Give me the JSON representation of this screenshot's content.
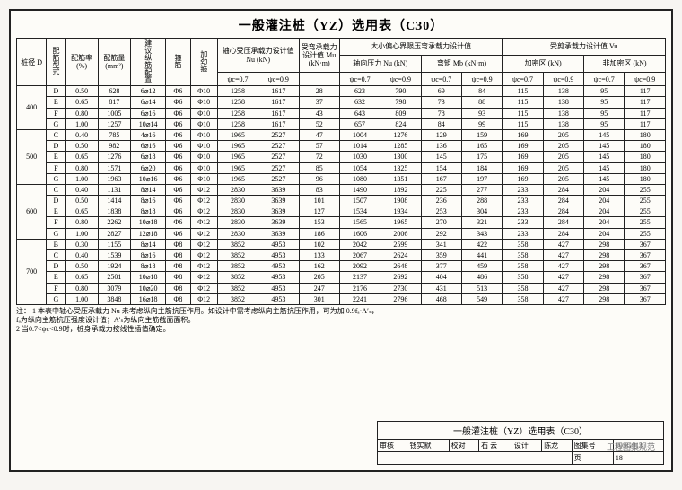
{
  "title": "一般灌注桩（YZ）选用表（C30）",
  "columns": {
    "diameter": "桩径 D",
    "reinf_type": "配筋型式",
    "reinf_ratio": "配筋率 (%)",
    "reinf_area": "配筋量 (mm²)",
    "recommend": "建议纵筋配置",
    "stirrup": "箍筋",
    "add_stirrup": "加劲箍",
    "axial_group": "轴心受压承载力设计值 Nu (kN)",
    "bend_group": "受弯承载力设计值 Mu (kN·m)",
    "large_ecc_group": "大小偏心界限压弯承载力设计值",
    "large_ecc_N": "轴向压力 Nu (kN)",
    "large_ecc_M": "弯矩 Mb (kN·m)",
    "shear_group": "受剪承载力设计值 Vu",
    "shear_dense": "加密区 (kN)",
    "shear_sparse": "非加密区 (kN)",
    "psi07": "ψc=0.7",
    "psi09": "ψc=0.9"
  },
  "groups": [
    {
      "diameter": "400",
      "rows": [
        [
          "D",
          "0.50",
          "628",
          "6⌀12",
          "Φ6",
          "Φ10",
          "1258",
          "1617",
          "28",
          "623",
          "790",
          "69",
          "84",
          "115",
          "138",
          "95",
          "117"
        ],
        [
          "E",
          "0.65",
          "817",
          "6⌀14",
          "Φ6",
          "Φ10",
          "1258",
          "1617",
          "37",
          "632",
          "798",
          "73",
          "88",
          "115",
          "138",
          "95",
          "117"
        ],
        [
          "F",
          "0.80",
          "1005",
          "6⌀16",
          "Φ6",
          "Φ10",
          "1258",
          "1617",
          "43",
          "643",
          "809",
          "78",
          "93",
          "115",
          "138",
          "95",
          "117"
        ],
        [
          "G",
          "1.00",
          "1257",
          "10⌀14",
          "Φ6",
          "Φ10",
          "1258",
          "1617",
          "52",
          "657",
          "824",
          "84",
          "99",
          "115",
          "138",
          "95",
          "117"
        ]
      ]
    },
    {
      "diameter": "500",
      "rows": [
        [
          "C",
          "0.40",
          "785",
          "4⌀16",
          "Φ6",
          "Φ10",
          "1965",
          "2527",
          "47",
          "1004",
          "1276",
          "129",
          "159",
          "169",
          "205",
          "145",
          "180"
        ],
        [
          "D",
          "0.50",
          "982",
          "6⌀16",
          "Φ6",
          "Φ10",
          "1965",
          "2527",
          "57",
          "1014",
          "1285",
          "136",
          "165",
          "169",
          "205",
          "145",
          "180"
        ],
        [
          "E",
          "0.65",
          "1276",
          "6⌀18",
          "Φ6",
          "Φ10",
          "1965",
          "2527",
          "72",
          "1030",
          "1300",
          "145",
          "175",
          "169",
          "205",
          "145",
          "180"
        ],
        [
          "F",
          "0.80",
          "1571",
          "6⌀20",
          "Φ6",
          "Φ10",
          "1965",
          "2527",
          "85",
          "1054",
          "1325",
          "154",
          "184",
          "169",
          "205",
          "145",
          "180"
        ],
        [
          "G",
          "1.00",
          "1963",
          "10⌀16",
          "Φ6",
          "Φ10",
          "1965",
          "2527",
          "96",
          "1080",
          "1351",
          "167",
          "197",
          "169",
          "205",
          "145",
          "180"
        ]
      ]
    },
    {
      "diameter": "600",
      "rows": [
        [
          "C",
          "0.40",
          "1131",
          "8⌀14",
          "Φ6",
          "Φ12",
          "2830",
          "3639",
          "83",
          "1490",
          "1892",
          "225",
          "277",
          "233",
          "284",
          "204",
          "255"
        ],
        [
          "D",
          "0.50",
          "1414",
          "8⌀16",
          "Φ6",
          "Φ12",
          "2830",
          "3639",
          "101",
          "1507",
          "1908",
          "236",
          "288",
          "233",
          "284",
          "204",
          "255"
        ],
        [
          "E",
          "0.65",
          "1838",
          "8⌀18",
          "Φ6",
          "Φ12",
          "2830",
          "3639",
          "127",
          "1534",
          "1934",
          "253",
          "304",
          "233",
          "284",
          "204",
          "255"
        ],
        [
          "F",
          "0.80",
          "2262",
          "10⌀18",
          "Φ6",
          "Φ12",
          "2830",
          "3639",
          "153",
          "1565",
          "1965",
          "270",
          "321",
          "233",
          "284",
          "204",
          "255"
        ],
        [
          "G",
          "1.00",
          "2827",
          "12⌀18",
          "Φ6",
          "Φ12",
          "2830",
          "3639",
          "186",
          "1606",
          "2006",
          "292",
          "343",
          "233",
          "284",
          "204",
          "255"
        ]
      ]
    },
    {
      "diameter": "700",
      "rows": [
        [
          "B",
          "0.30",
          "1155",
          "8⌀14",
          "Φ8",
          "Φ12",
          "3852",
          "4953",
          "102",
          "2042",
          "2599",
          "341",
          "422",
          "358",
          "427",
          "298",
          "367"
        ],
        [
          "C",
          "0.40",
          "1539",
          "8⌀16",
          "Φ8",
          "Φ12",
          "3852",
          "4953",
          "133",
          "2067",
          "2624",
          "359",
          "441",
          "358",
          "427",
          "298",
          "367"
        ],
        [
          "D",
          "0.50",
          "1924",
          "8⌀18",
          "Φ8",
          "Φ12",
          "3852",
          "4953",
          "162",
          "2092",
          "2648",
          "377",
          "459",
          "358",
          "427",
          "298",
          "367"
        ],
        [
          "E",
          "0.65",
          "2501",
          "10⌀18",
          "Φ8",
          "Φ12",
          "3852",
          "4953",
          "205",
          "2137",
          "2692",
          "404",
          "486",
          "358",
          "427",
          "298",
          "367"
        ],
        [
          "F",
          "0.80",
          "3079",
          "10⌀20",
          "Φ8",
          "Φ12",
          "3852",
          "4953",
          "247",
          "2176",
          "2730",
          "431",
          "513",
          "358",
          "427",
          "298",
          "367"
        ],
        [
          "G",
          "1.00",
          "3848",
          "16⌀18",
          "Φ8",
          "Φ12",
          "3852",
          "4953",
          "301",
          "2241",
          "2796",
          "468",
          "549",
          "358",
          "427",
          "298",
          "367"
        ]
      ]
    }
  ],
  "notes": {
    "lead": "注：",
    "n1": "1 本表中轴心受压承载力 Nu 未考虑纵向主筋抗压作用。如设计中需考虑纵向主筋抗压作用，可为加 0.9fₐ·A′ₛ，fₐ为纵向主筋抗压强度设计值；A′ₛ为纵向主筋截面面积。",
    "n2": "2 当0.7<ψc<0.9时，桩身承载力按线性插值确定。"
  },
  "block": {
    "title": "一般灌注桩（YZ）选用表（C30）",
    "lbl_check": "审核",
    "v_check": "钱实默",
    "lbl_chk2": "校对",
    "v_chk2": "石 云",
    "lbl_des": "设计",
    "v_des": "陈龙",
    "lbl_set": "图集号",
    "v_set": "10SG813",
    "lbl_page": "页",
    "v_page": "18"
  },
  "watermark": "工程图集规范",
  "colors": {
    "border": "#222",
    "bg": "#fdfcf8"
  }
}
